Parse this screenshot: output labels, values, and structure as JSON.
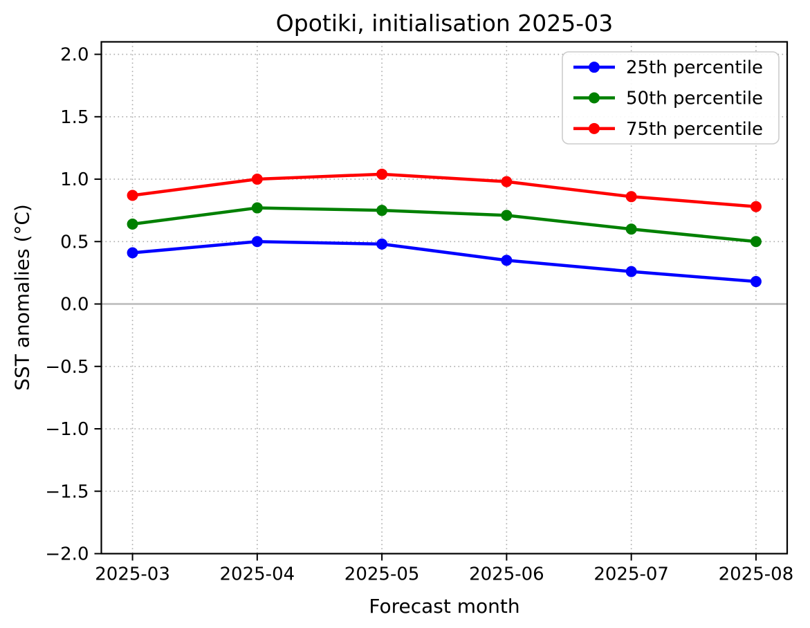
{
  "chart_data": {
    "type": "line",
    "title": "Opotiki, initialisation 2025-03",
    "xlabel": "Forecast month",
    "ylabel": "SST anomalies (°C)",
    "categories": [
      "2025-03",
      "2025-04",
      "2025-05",
      "2025-06",
      "2025-07",
      "2025-08"
    ],
    "series": [
      {
        "name": "25th percentile",
        "color": "#0000ff",
        "values": [
          0.41,
          0.5,
          0.48,
          0.35,
          0.26,
          0.18
        ]
      },
      {
        "name": "50th percentile",
        "color": "#008000",
        "values": [
          0.64,
          0.77,
          0.75,
          0.71,
          0.6,
          0.5
        ]
      },
      {
        "name": "75th percentile",
        "color": "#ff0000",
        "values": [
          0.87,
          1.0,
          1.04,
          0.98,
          0.86,
          0.78
        ]
      }
    ],
    "ylim": [
      -2.0,
      2.1
    ],
    "xlim_pad": 0.25,
    "yticks": [
      2.0,
      1.5,
      1.0,
      0.5,
      0.0,
      -0.5,
      -1.0,
      -1.5,
      -2.0
    ],
    "ytick_labels": [
      "2.0",
      "1.5",
      "1.0",
      "0.5",
      "0.0",
      "−0.5",
      "−1.0",
      "−1.5",
      "−2.0"
    ],
    "grid": true,
    "grid_style": "dotted",
    "grid_color": "#aaaaaa",
    "zero_line_value": 0.0,
    "zero_line_color": "#c4c4c4",
    "legend_position": "upper right",
    "frame_color": "#000000",
    "background_color": "#ffffff"
  }
}
